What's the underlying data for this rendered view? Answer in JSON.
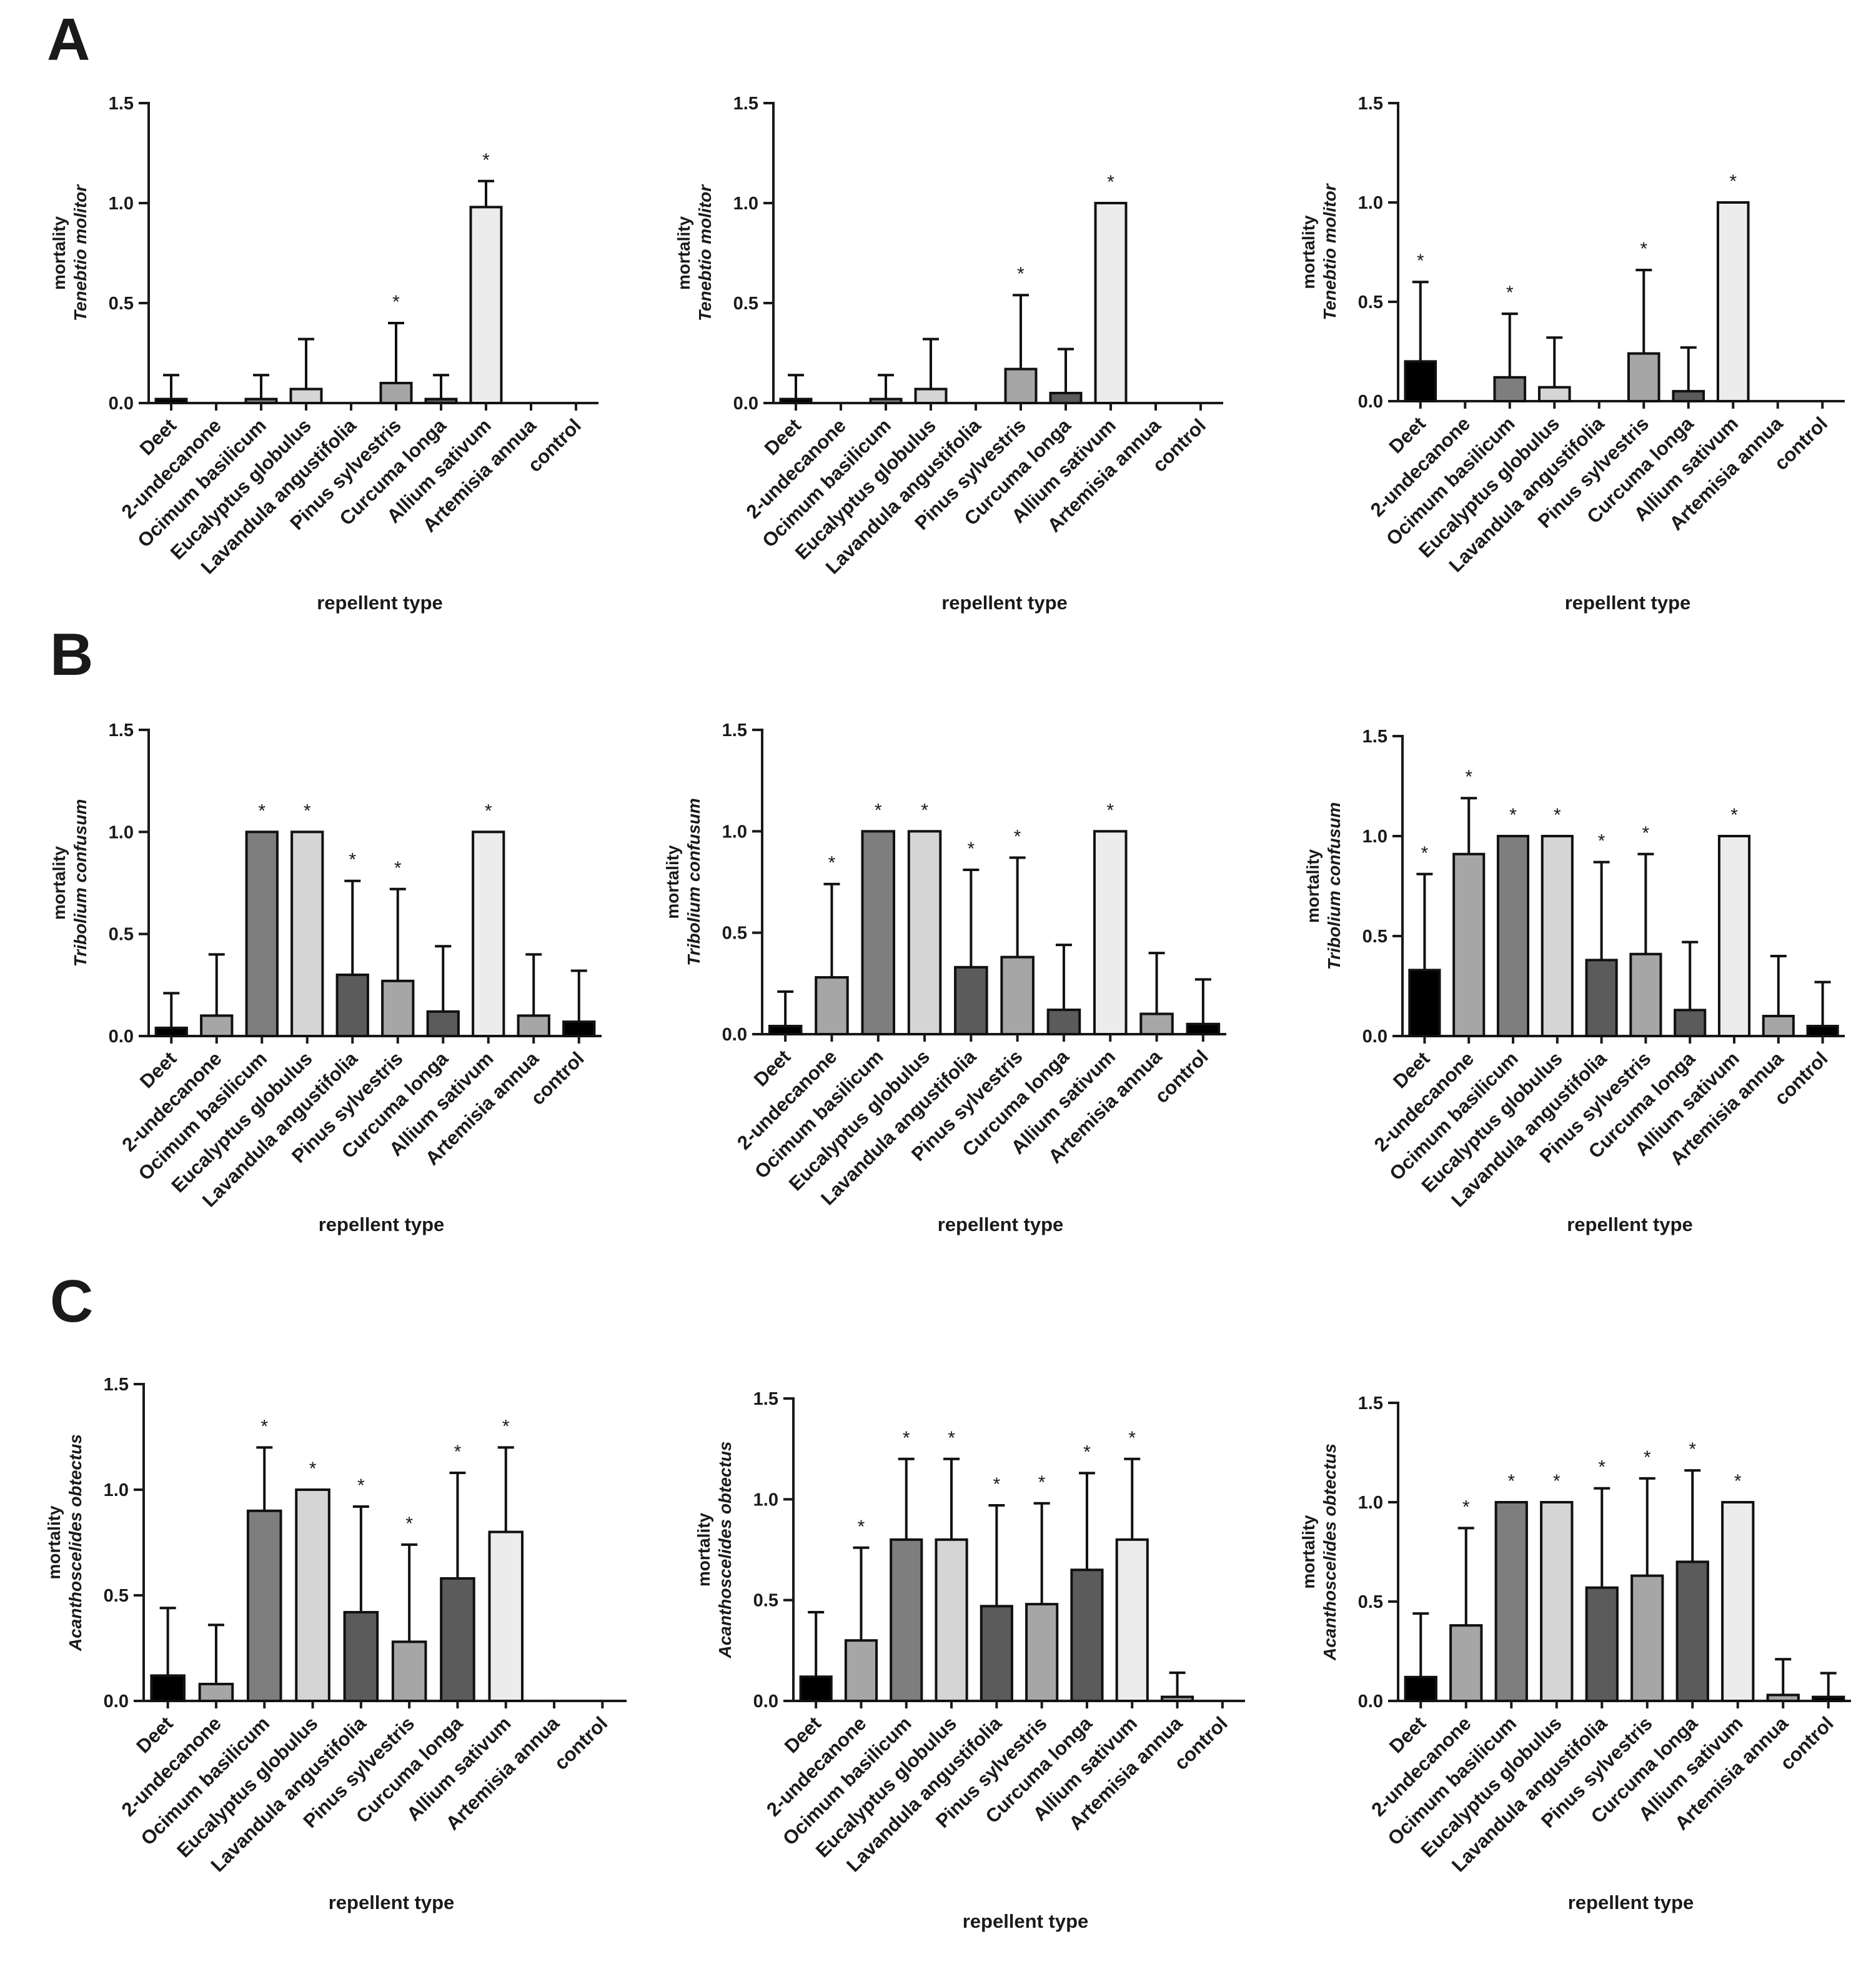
{
  "figure": {
    "panel_labels": [
      "A",
      "B",
      "C"
    ],
    "ylabel_line1": "mortality",
    "species": [
      "Tenebtio molitor",
      "Tribolium confusum",
      "Acanthoscelides obtectus"
    ],
    "xlabel": "repellent type",
    "star_symbol": "*"
  },
  "colors": {
    "black": "#000000",
    "dark_gray": "#5b5b5b",
    "mid_gray": "#7e7e7e",
    "light_gray": "#a6a6a6",
    "pale_gray": "#d5d5d5",
    "very_pale": "#ececec"
  },
  "chart_data": [
    {
      "type": "bar",
      "row": "A",
      "col": 1,
      "title": "",
      "xlabel": "repellent type",
      "ylabel": "mortality Tenebtio molitor",
      "ylim": [
        0,
        1.5
      ],
      "yticks": [
        "0.0",
        "0.5",
        "1.0",
        "1.5"
      ],
      "categories": [
        "Deet",
        "2-undecanone",
        "Ocimum basilicum",
        "Eucalyptus globulus",
        "Lavandula angustifolia",
        "Pinus sylvestris",
        "Curcuma longa",
        "Allium sativum",
        "Artemisia annua",
        "control"
      ],
      "values": [
        0.02,
        0,
        0.02,
        0.07,
        0,
        0.1,
        0.02,
        0.98,
        0,
        0
      ],
      "errors": [
        0.12,
        0,
        0.12,
        0.25,
        0,
        0.3,
        0.12,
        0.13,
        0,
        0
      ],
      "significant": [
        false,
        false,
        false,
        false,
        false,
        true,
        false,
        true,
        false,
        false
      ]
    },
    {
      "type": "bar",
      "row": "A",
      "col": 2,
      "title": "",
      "xlabel": "repellent type",
      "ylabel": "mortality Tenebtio molitor",
      "ylim": [
        0,
        1.5
      ],
      "yticks": [
        "0.0",
        "0.5",
        "1.0",
        "1.5"
      ],
      "categories": [
        "Deet",
        "2-undecanone",
        "Ocimum basilicum",
        "Eucalyptus globulus",
        "Lavandula angustifolia",
        "Pinus sylvestris",
        "Curcuma longa",
        "Allium sativum",
        "Artemisia annua",
        "control"
      ],
      "values": [
        0.02,
        0,
        0.02,
        0.07,
        0,
        0.17,
        0.05,
        1.0,
        0,
        0
      ],
      "errors": [
        0.12,
        0,
        0.12,
        0.25,
        0,
        0.37,
        0.22,
        0,
        0,
        0
      ],
      "significant": [
        false,
        false,
        false,
        false,
        false,
        true,
        false,
        true,
        false,
        false
      ]
    },
    {
      "type": "bar",
      "row": "A",
      "col": 3,
      "title": "",
      "xlabel": "repellent type",
      "ylabel": "mortality Tenebtio molitor",
      "ylim": [
        0,
        1.5
      ],
      "yticks": [
        "0.0",
        "0.5",
        "1.0",
        "1.5"
      ],
      "categories": [
        "Deet",
        "2-undecanone",
        "Ocimum basilicum",
        "Eucalyptus globulus",
        "Lavandula angustifolia",
        "Pinus sylvestris",
        "Curcuma longa",
        "Allium sativum",
        "Artemisia annua",
        "control"
      ],
      "values": [
        0.2,
        0,
        0.12,
        0.07,
        0,
        0.24,
        0.05,
        1.0,
        0,
        0
      ],
      "errors": [
        0.4,
        0,
        0.32,
        0.25,
        0,
        0.42,
        0.22,
        0,
        0,
        0
      ],
      "significant": [
        true,
        false,
        true,
        false,
        false,
        true,
        false,
        true,
        false,
        false
      ]
    },
    {
      "type": "bar",
      "row": "B",
      "col": 1,
      "title": "",
      "xlabel": "repellent type",
      "ylabel": "mortality Tribolium confusum",
      "ylim": [
        0,
        1.5
      ],
      "yticks": [
        "0.0",
        "0.5",
        "1.0",
        "1.5"
      ],
      "categories": [
        "Deet",
        "2-undecanone",
        "Ocimum basilicum",
        "Eucalyptus globulus",
        "Lavandula angustifolia",
        "Pinus sylvestris",
        "Curcuma longa",
        "Allium sativum",
        "Artemisia annua",
        "control"
      ],
      "values": [
        0.04,
        0.1,
        1.0,
        1.0,
        0.3,
        0.27,
        0.12,
        1.0,
        0.1,
        0.07
      ],
      "errors": [
        0.17,
        0.3,
        0,
        0,
        0.46,
        0.45,
        0.32,
        0,
        0.3,
        0.25
      ],
      "significant": [
        false,
        false,
        true,
        true,
        true,
        true,
        false,
        true,
        false,
        false
      ]
    },
    {
      "type": "bar",
      "row": "B",
      "col": 2,
      "title": "",
      "xlabel": "repellent type",
      "ylabel": "mortality Tribolium confusum",
      "ylim": [
        0,
        1.5
      ],
      "yticks": [
        "0.0",
        "0.5",
        "1.0",
        "1.5"
      ],
      "categories": [
        "Deet",
        "2-undecanone",
        "Ocimum basilicum",
        "Eucalyptus globulus",
        "Lavandula angustifolia",
        "Pinus sylvestris",
        "Curcuma longa",
        "Allium sativum",
        "Artemisia annua",
        "control"
      ],
      "values": [
        0.04,
        0.28,
        1.0,
        1.0,
        0.33,
        0.38,
        0.12,
        1.0,
        0.1,
        0.05
      ],
      "errors": [
        0.17,
        0.46,
        0,
        0,
        0.48,
        0.49,
        0.32,
        0,
        0.3,
        0.22
      ],
      "significant": [
        false,
        true,
        true,
        true,
        true,
        true,
        false,
        true,
        false,
        false
      ]
    },
    {
      "type": "bar",
      "row": "B",
      "col": 3,
      "title": "",
      "xlabel": "repellent type",
      "ylabel": "mortality Tribolium confusum",
      "ylim": [
        0,
        1.5
      ],
      "yticks": [
        "0.0",
        "0.5",
        "1.0",
        "1.5"
      ],
      "categories": [
        "Deet",
        "2-undecanone",
        "Ocimum basilicum",
        "Eucalyptus globulus",
        "Lavandula angustifolia",
        "Pinus sylvestris",
        "Curcuma longa",
        "Allium sativum",
        "Artemisia annua",
        "control"
      ],
      "values": [
        0.33,
        0.91,
        1.0,
        1.0,
        0.38,
        0.41,
        0.13,
        1.0,
        0.1,
        0.05
      ],
      "errors": [
        0.48,
        0.28,
        0,
        0,
        0.49,
        0.5,
        0.34,
        0,
        0.3,
        0.22
      ],
      "significant": [
        true,
        true,
        true,
        true,
        true,
        true,
        false,
        true,
        false,
        false
      ]
    },
    {
      "type": "bar",
      "row": "C",
      "col": 1,
      "title": "",
      "xlabel": "repellent type",
      "ylabel": "mortality Acanthoscelides obtectus",
      "ylim": [
        0,
        1.5
      ],
      "yticks": [
        "0.0",
        "0.5",
        "1.0",
        "1.5"
      ],
      "categories": [
        "Deet",
        "2-undecanone",
        "Ocimum basilicum",
        "Eucalyptus globulus",
        "Lavandula angustifolia",
        "Pinus sylvestris",
        "Curcuma longa",
        "Allium sativum",
        "Artemisia annua",
        "control"
      ],
      "values": [
        0.12,
        0.08,
        0.9,
        1.0,
        0.42,
        0.28,
        0.58,
        0.8,
        0,
        0
      ],
      "errors": [
        0.32,
        0.28,
        0.3,
        0,
        0.5,
        0.46,
        0.5,
        0.4,
        0,
        0
      ],
      "significant": [
        false,
        false,
        true,
        true,
        true,
        true,
        true,
        true,
        false,
        false
      ]
    },
    {
      "type": "bar",
      "row": "C",
      "col": 2,
      "title": "",
      "xlabel": "repellent type",
      "ylabel": "mortality Acanthoscelides obtectus",
      "ylim": [
        0,
        1.5
      ],
      "yticks": [
        "0.0",
        "0.5",
        "1.0",
        "1.5"
      ],
      "categories": [
        "Deet",
        "2-undecanone",
        "Ocimum basilicum",
        "Eucalyptus globulus",
        "Lavandula angustifolia",
        "Pinus sylvestris",
        "Curcuma longa",
        "Allium sativum",
        "Artemisia annua",
        "control"
      ],
      "values": [
        0.12,
        0.3,
        0.8,
        0.8,
        0.47,
        0.48,
        0.65,
        0.8,
        0.02,
        0
      ],
      "errors": [
        0.32,
        0.46,
        0.4,
        0.4,
        0.5,
        0.5,
        0.48,
        0.4,
        0.12,
        0
      ],
      "significant": [
        false,
        true,
        true,
        true,
        true,
        true,
        true,
        true,
        false,
        false
      ]
    },
    {
      "type": "bar",
      "row": "C",
      "col": 3,
      "title": "",
      "xlabel": "repellent type",
      "ylabel": "mortality Acanthoscelides obtectus",
      "ylim": [
        0,
        1.5
      ],
      "yticks": [
        "0.0",
        "0.5",
        "1.0",
        "1.5"
      ],
      "categories": [
        "Deet",
        "2-undecanone",
        "Ocimum basilicum",
        "Eucalyptus globulus",
        "Lavandula angustifolia",
        "Pinus sylvestris",
        "Curcuma longa",
        "Allium sativum",
        "Artemisia annua",
        "control"
      ],
      "values": [
        0.12,
        0.38,
        1.0,
        1.0,
        0.57,
        0.63,
        0.7,
        1.0,
        0.03,
        0.02
      ],
      "errors": [
        0.32,
        0.49,
        0,
        0,
        0.5,
        0.49,
        0.46,
        0,
        0.18,
        0.12
      ],
      "significant": [
        false,
        true,
        true,
        true,
        true,
        true,
        true,
        true,
        false,
        false
      ]
    }
  ]
}
